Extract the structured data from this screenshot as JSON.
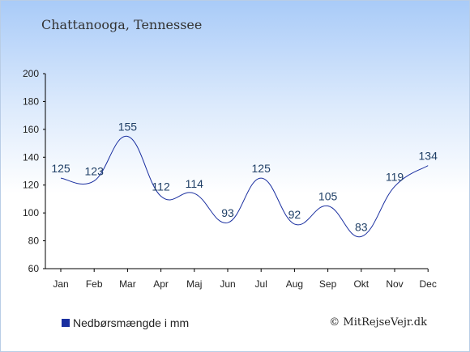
{
  "chart_data": {
    "type": "line",
    "subtitle": "Chattanooga, Tennessee",
    "categories": [
      "Jan",
      "Feb",
      "Mar",
      "Apr",
      "Maj",
      "Jun",
      "Jul",
      "Aug",
      "Sep",
      "Okt",
      "Nov",
      "Dec"
    ],
    "series": [
      {
        "name": "Nedbørsmængde i mm",
        "values": [
          125,
          123,
          155,
          112,
          114,
          93,
          125,
          92,
          105,
          83,
          119,
          134
        ],
        "color": "#1a2fa0"
      }
    ],
    "ylim": [
      60,
      200
    ],
    "yticks": [
      60,
      80,
      100,
      120,
      140,
      160,
      180,
      200
    ],
    "grid": false,
    "legend_position": "bottom-left"
  },
  "credit": "© MitRejseVejr.dk",
  "colors": {
    "line": "#1a2fa0",
    "legend_swatch": "#1a2fa0",
    "axis": "#000000"
  }
}
